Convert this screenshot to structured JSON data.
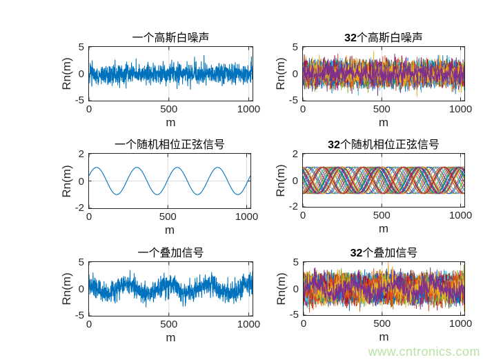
{
  "colors": {
    "single_line": "#0072BD",
    "matlab_palette": [
      "#0072BD",
      "#D95319",
      "#EDB120",
      "#7E2F8E",
      "#77AC30",
      "#4DBEEE",
      "#A2142F"
    ],
    "axis": "#262626",
    "grid": "#dcdcdc",
    "watermark_green": "#b9e2a4"
  },
  "watermark": {
    "text": "www.cntronics.com"
  },
  "chart_data": [
    {
      "type": "line",
      "title": "一个高斯白噪声",
      "title_num": "",
      "title_cn": "一个高斯白噪声",
      "xlabel": "m",
      "ylabel": "Rn(m)",
      "xlim": [
        0,
        1024
      ],
      "ylim": [
        -5,
        5
      ],
      "xtick_values": [
        0,
        500,
        1000
      ],
      "ytick_values": [
        5,
        0,
        -5
      ],
      "xtick_labels": [
        "0",
        "500",
        "1000"
      ],
      "ytick_labels": [
        "5",
        "0",
        "-5"
      ],
      "grid": true,
      "series_count": 1,
      "signal": {
        "kind": "gaussian-noise",
        "mean": 0,
        "std": 1,
        "n": 1024,
        "seed": 101
      }
    },
    {
      "type": "line",
      "title": "32个高斯白噪声",
      "title_num": "32",
      "title_cn": "个高斯白噪声",
      "xlabel": "m",
      "ylabel": "Rn(m)",
      "xlim": [
        0,
        1024
      ],
      "ylim": [
        -5,
        5
      ],
      "xtick_values": [
        0,
        500,
        1000
      ],
      "ytick_values": [
        5,
        0,
        -5
      ],
      "xtick_labels": [
        "0",
        "500",
        "1000"
      ],
      "ytick_labels": [
        "5",
        "0",
        "-5"
      ],
      "grid": true,
      "series_count": 32,
      "signal": {
        "kind": "gaussian-noise",
        "mean": 0,
        "std": 1,
        "n": 600,
        "seed": 202
      }
    },
    {
      "type": "line",
      "title": "一个随机相位正弦信号",
      "title_num": "",
      "title_cn": "一个随机相位正弦信号",
      "xlabel": "m",
      "ylabel": "Rn(m)",
      "xlim": [
        0,
        1024
      ],
      "ylim": [
        -2,
        2
      ],
      "xtick_values": [
        0,
        500,
        1000
      ],
      "ytick_values": [
        2,
        0,
        -2
      ],
      "xtick_labels": [
        "0",
        "500",
        "1000"
      ],
      "ytick_labels": [
        "2",
        "0",
        "-2"
      ],
      "grid": true,
      "series_count": 1,
      "signal": {
        "kind": "sine",
        "amplitude": 1,
        "cycles": 4,
        "phase_rad": 0.4,
        "n": 512,
        "seed": 303
      }
    },
    {
      "type": "line",
      "title": "32个随机相位正弦信号",
      "title_num": "32",
      "title_cn": "个随机相位正弦信号",
      "xlabel": "m",
      "ylabel": "Rn(m)",
      "xlim": [
        0,
        1024
      ],
      "ylim": [
        -2,
        2
      ],
      "xtick_values": [
        0,
        500,
        1000
      ],
      "ytick_values": [
        2,
        0,
        -2
      ],
      "xtick_labels": [
        "0",
        "500",
        "1000"
      ],
      "ytick_labels": [
        "2",
        "0",
        "-2"
      ],
      "grid": true,
      "series_count": 32,
      "signal": {
        "kind": "sine",
        "amplitude": 1,
        "cycles": 4,
        "phase_rad": "random",
        "n": 256,
        "seed": 404
      }
    },
    {
      "type": "line",
      "title": "一个叠加信号",
      "title_num": "",
      "title_cn": "一个叠加信号",
      "xlabel": "m",
      "ylabel": "Rn(m)",
      "xlim": [
        0,
        1024
      ],
      "ylim": [
        -5,
        5
      ],
      "xtick_values": [
        0,
        500,
        1000
      ],
      "ytick_values": [
        5,
        0,
        -5
      ],
      "xtick_labels": [
        "0",
        "500",
        "1000"
      ],
      "ytick_labels": [
        "5",
        "0",
        "-5"
      ],
      "grid": true,
      "series_count": 1,
      "signal": {
        "kind": "sine-plus-noise",
        "amplitude": 1,
        "cycles": 4,
        "phase_rad": 2.0,
        "std": 1,
        "n": 1024,
        "seed": 505
      }
    },
    {
      "type": "line",
      "title": "32个叠加信号",
      "title_num": "32",
      "title_cn": "个叠加信号",
      "xlabel": "m",
      "ylabel": "Rn(m)",
      "xlim": [
        0,
        1024
      ],
      "ylim": [
        -5,
        5
      ],
      "xtick_values": [
        0,
        500,
        1000
      ],
      "ytick_values": [
        5,
        0,
        -5
      ],
      "xtick_labels": [
        "0",
        "500",
        "1000"
      ],
      "ytick_labels": [
        "5",
        "0",
        "-5"
      ],
      "grid": true,
      "series_count": 32,
      "signal": {
        "kind": "sine-plus-noise",
        "amplitude": 1,
        "cycles": 4,
        "phase_rad": "random",
        "std": 1,
        "n": 600,
        "seed": 606
      }
    }
  ]
}
